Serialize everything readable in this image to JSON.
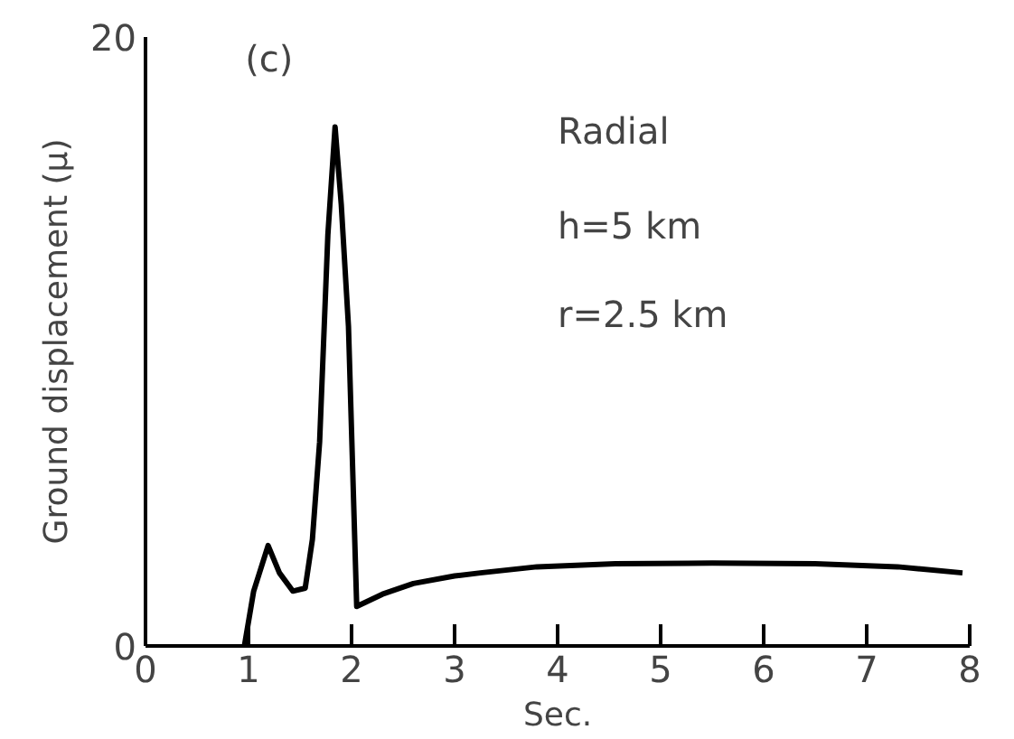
{
  "chart_data": {
    "type": "line",
    "title": "(c)",
    "xlabel": "Sec.",
    "ylabel": "Ground displacement (μ)",
    "annotations": [
      "Radial",
      "h=5 km",
      "r=2.5 km"
    ],
    "x": [
      0.96,
      1.05,
      1.19,
      1.3,
      1.43,
      1.55,
      1.62,
      1.69,
      1.77,
      1.84,
      1.9,
      1.97,
      2.05,
      2.3,
      2.6,
      3.0,
      3.25,
      3.8,
      4.56,
      5.5,
      6.5,
      7.3,
      7.93
    ],
    "series": [
      {
        "color": "#000000",
        "values": [
          0,
          1.8,
          3.3,
          2.4,
          1.8,
          1.9,
          3.5,
          6.7,
          13.5,
          17.05,
          14.5,
          10.5,
          1.3,
          1.7,
          2.05,
          2.3,
          2.4,
          2.6,
          2.7,
          2.72,
          2.7,
          2.6,
          2.4
        ]
      }
    ],
    "xlim": [
      0,
      8
    ],
    "ylim": [
      0,
      20
    ],
    "xticks": [
      0,
      1,
      2,
      3,
      4,
      5,
      6,
      7,
      8
    ],
    "yticks": [
      0,
      20
    ],
    "grid": false,
    "marker": "none",
    "line_style": "solid"
  }
}
